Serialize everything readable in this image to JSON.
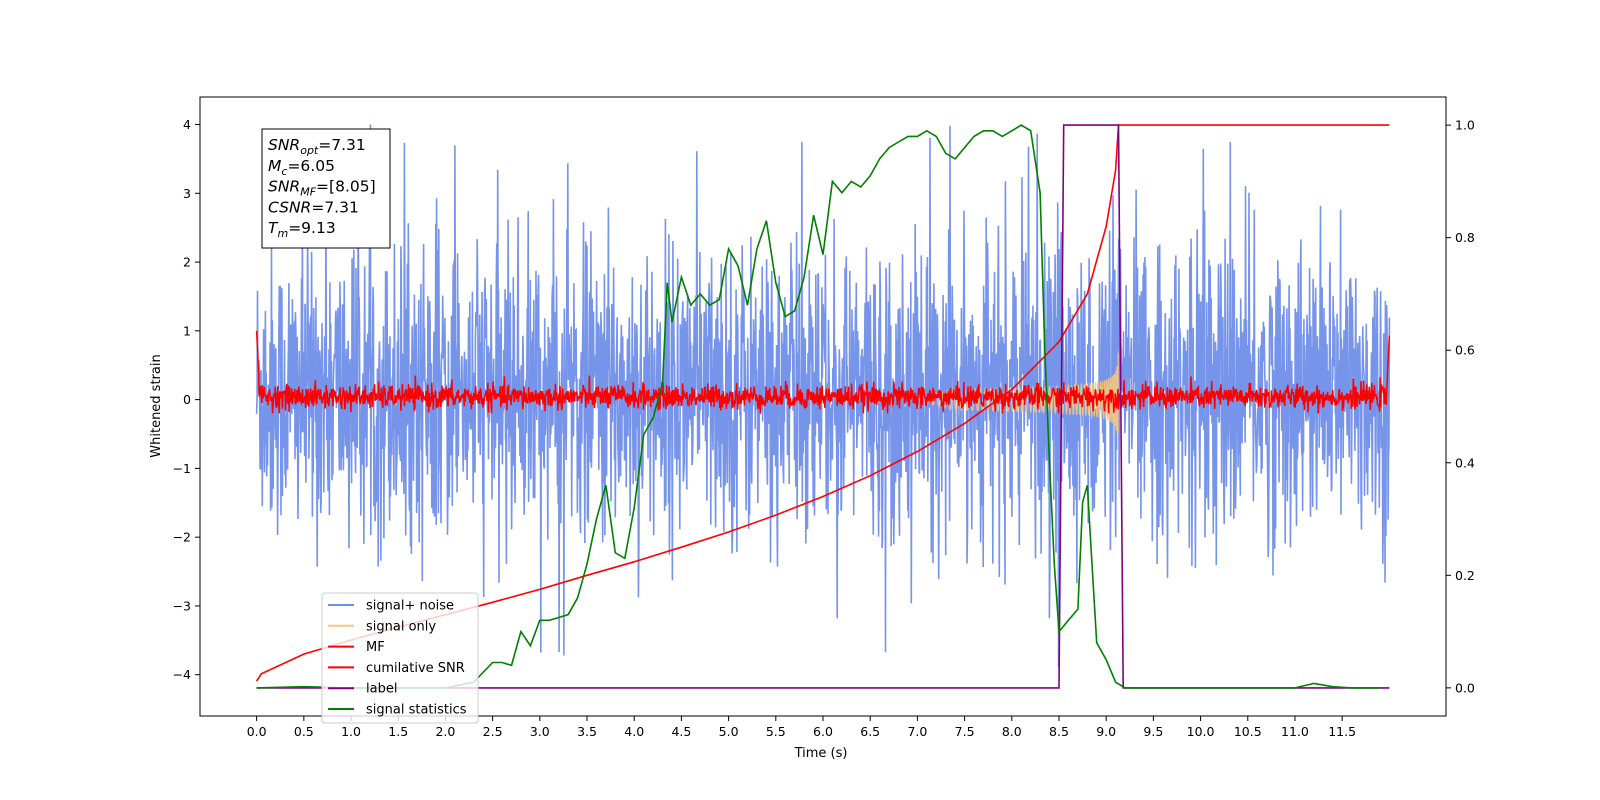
{
  "chart_data": {
    "type": "line",
    "xlabel": "Time (s)",
    "ylabel": "Whitened strain",
    "xlim": [
      -0.6,
      12.6
    ],
    "ylim": [
      -4.6,
      4.4
    ],
    "ylim_right": [
      -0.05,
      1.05
    ],
    "x_ticks": [
      0.0,
      0.5,
      1.0,
      1.5,
      2.0,
      2.5,
      3.0,
      3.5,
      4.0,
      4.5,
      5.0,
      5.5,
      6.0,
      6.5,
      7.0,
      7.5,
      8.0,
      8.5,
      9.0,
      9.5,
      10.0,
      10.5,
      11.0,
      11.5
    ],
    "x_tick_labels": [
      "0.0",
      "0.5",
      "1.0",
      "1.5",
      "2.0",
      "2.5",
      "3.0",
      "3.5",
      "4.0",
      "4.5",
      "5.0",
      "5.5",
      "6.0",
      "6.5",
      "7.0",
      "7.5",
      "8.0",
      "8.5",
      "9.0",
      "9.5",
      "10.0",
      "10.5",
      "11.0",
      "11.5"
    ],
    "y_ticks": [
      4,
      3,
      2,
      1,
      0,
      -1,
      -2,
      -3,
      -4
    ],
    "y_tick_labels": [
      "4",
      "3",
      "2",
      "1",
      "0",
      "−1",
      "−2",
      "−3",
      "−4"
    ],
    "y2_ticks": [
      1.0,
      0.8,
      0.6,
      0.4,
      0.2,
      0.0
    ],
    "y2_tick_labels": [
      "1.0",
      "0.8",
      "0.6",
      "0.4",
      "0.2",
      "0.0"
    ],
    "grid": false,
    "legend_position": "lower-left",
    "annotation": {
      "lines": [
        {
          "base": "SNR",
          "sub": "opt",
          "value": "=7.31"
        },
        {
          "base": "M",
          "sub": "c",
          "value": "=6.05"
        },
        {
          "base": "SNR",
          "sub": "MF",
          "value": "=[8.05]"
        },
        {
          "base": "CSNR",
          "sub": "",
          "value": "=7.31"
        },
        {
          "base": "T",
          "sub": "m",
          "value": "=9.13"
        }
      ]
    },
    "series": [
      {
        "name": "signal+ noise",
        "axis": "left",
        "color": "#6f8ee8",
        "kind": "noise",
        "x_range": [
          0.0,
          12.0
        ],
        "envelope": [
          -3.9,
          4.0
        ],
        "typical_band": [
          -2.2,
          2.4
        ]
      },
      {
        "name": "signal only",
        "axis": "left",
        "color": "#f5c77e",
        "kind": "chirp",
        "x_range": [
          7.0,
          9.13
        ],
        "peak_amplitude": 0.75
      },
      {
        "name": "MF",
        "axis": "left",
        "color": "#ff0000",
        "kind": "noise",
        "x_range": [
          0.0,
          12.0
        ],
        "envelope": [
          -0.2,
          0.35
        ],
        "edge_values": [
          1.0,
          0.93
        ]
      },
      {
        "name": "cumilative SNR",
        "axis": "right",
        "color": "#ff0000",
        "x": [
          0.0,
          0.05,
          0.5,
          1.0,
          1.5,
          2.0,
          2.5,
          3.0,
          3.5,
          4.0,
          4.5,
          5.0,
          5.5,
          6.0,
          6.5,
          7.0,
          7.5,
          8.0,
          8.5,
          8.8,
          9.0,
          9.1,
          9.13,
          9.5,
          10.0,
          11.0,
          12.0
        ],
        "y": [
          0.012,
          0.025,
          0.06,
          0.085,
          0.108,
          0.13,
          0.152,
          0.175,
          0.2,
          0.224,
          0.25,
          0.277,
          0.307,
          0.34,
          0.377,
          0.42,
          0.47,
          0.53,
          0.615,
          0.7,
          0.82,
          0.92,
          1.0,
          1.0,
          1.0,
          1.0,
          1.0
        ]
      },
      {
        "name": "label",
        "axis": "right",
        "color": "#800080",
        "x": [
          0.0,
          8.5,
          8.55,
          9.13,
          9.18,
          12.0
        ],
        "y": [
          0.0,
          0.0,
          1.0,
          1.0,
          0.0,
          0.0
        ]
      },
      {
        "name": "signal statistics",
        "axis": "right",
        "color": "#008000",
        "x": [
          0.0,
          0.5,
          1.0,
          1.5,
          2.0,
          2.3,
          2.5,
          2.6,
          2.7,
          2.8,
          2.9,
          3.0,
          3.1,
          3.2,
          3.3,
          3.4,
          3.5,
          3.6,
          3.7,
          3.8,
          3.9,
          4.0,
          4.1,
          4.2,
          4.3,
          4.35,
          4.4,
          4.5,
          4.6,
          4.7,
          4.8,
          4.9,
          5.0,
          5.1,
          5.2,
          5.3,
          5.4,
          5.5,
          5.6,
          5.7,
          5.8,
          5.9,
          6.0,
          6.1,
          6.2,
          6.3,
          6.4,
          6.5,
          6.6,
          6.7,
          6.8,
          6.9,
          7.0,
          7.1,
          7.2,
          7.3,
          7.4,
          7.5,
          7.6,
          7.7,
          7.8,
          7.9,
          8.0,
          8.1,
          8.2,
          8.3,
          8.35,
          8.4,
          8.45,
          8.5,
          8.6,
          8.7,
          8.75,
          8.8,
          8.9,
          9.0,
          9.1,
          9.2,
          9.5,
          10.0,
          10.5,
          11.0,
          11.2,
          11.4,
          11.6,
          11.9
        ],
        "y": [
          0.0,
          0.002,
          0.0,
          0.0,
          0.0,
          0.01,
          0.045,
          0.045,
          0.04,
          0.1,
          0.075,
          0.12,
          0.12,
          0.125,
          0.13,
          0.16,
          0.22,
          0.3,
          0.36,
          0.24,
          0.23,
          0.32,
          0.45,
          0.48,
          0.54,
          0.72,
          0.65,
          0.73,
          0.68,
          0.7,
          0.68,
          0.69,
          0.78,
          0.75,
          0.68,
          0.78,
          0.83,
          0.72,
          0.66,
          0.67,
          0.73,
          0.84,
          0.77,
          0.9,
          0.88,
          0.9,
          0.89,
          0.91,
          0.94,
          0.96,
          0.97,
          0.98,
          0.98,
          0.99,
          0.98,
          0.95,
          0.94,
          0.96,
          0.98,
          0.99,
          0.99,
          0.98,
          0.99,
          1.0,
          0.99,
          0.88,
          0.6,
          0.4,
          0.22,
          0.1,
          0.12,
          0.14,
          0.33,
          0.36,
          0.08,
          0.05,
          0.01,
          0.0,
          0.0,
          0.0,
          0.0,
          0.0,
          0.008,
          0.002,
          0.0,
          0.0
        ]
      }
    ]
  }
}
